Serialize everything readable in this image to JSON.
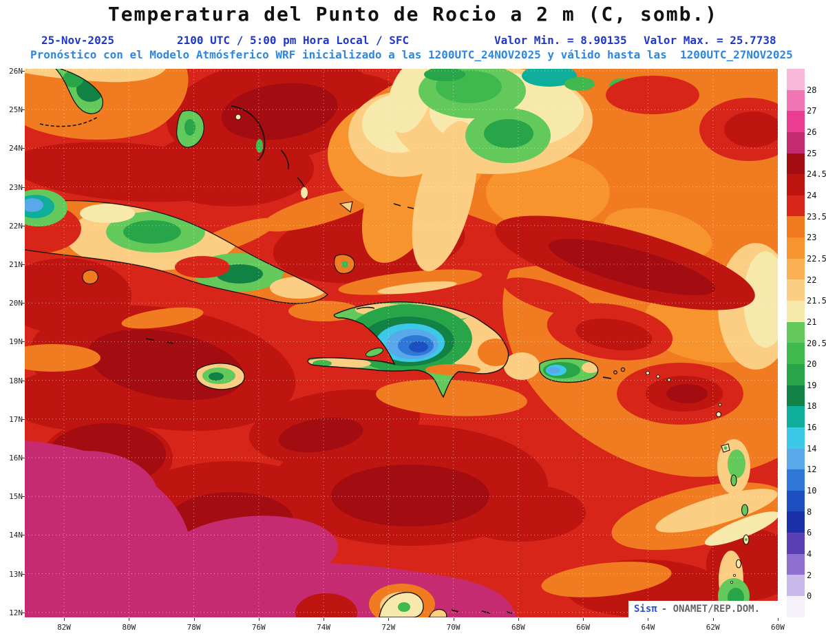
{
  "header": {
    "title": "Temperatura del Punto de Rocio a 2 m (C, somb.)",
    "date": "25-Nov-2025",
    "time": "2100 UTC / 5:00 pm Hora Local / SFC",
    "value_min": "Valor Min. = 8.90135",
    "value_max": "Valor Max. = 25.7738",
    "forecast_line": "Pronóstico con el Modelo Atmósferico WRF inicializado a las 1200UTC_24NOV2025 y válido hasta las  1200UTC_27NOV2025"
  },
  "map": {
    "lat_labels": [
      "26N",
      "25N",
      "24N",
      "23N",
      "22N",
      "21N",
      "20N",
      "19N",
      "18N",
      "17N",
      "16N",
      "15N",
      "14N",
      "13N",
      "12N"
    ],
    "lon_labels": [
      "82W",
      "80W",
      "78W",
      "76W",
      "74W",
      "72W",
      "70W",
      "68W",
      "66W",
      "64W",
      "62W",
      "60W"
    ],
    "watermark": {
      "brand": "Sisπ",
      "suffix": "- ONAMET/REP.DOM."
    }
  },
  "colorbar": {
    "labels": [
      "28",
      "27",
      "26",
      "25",
      "24.5",
      "24",
      "23.5",
      "23",
      "22.5",
      "22",
      "21.5",
      "21",
      "20.5",
      "20",
      "19",
      "18",
      "16",
      "14",
      "12",
      "10",
      "8",
      "6",
      "4",
      "2",
      "0"
    ],
    "colors": [
      "#f9b8da",
      "#f276b6",
      "#ea3c92",
      "#c62a70",
      "#a30c11",
      "#bf1510",
      "#d8251a",
      "#f07b20",
      "#f8942e",
      "#fbb054",
      "#fcce83",
      "#f7e8ab",
      "#63c95b",
      "#3fb94e",
      "#28a449",
      "#118244",
      "#0fae9a",
      "#3cc8e8",
      "#58a8ea",
      "#2e77d6",
      "#1d4fc0",
      "#1b2fa8",
      "#5b3fb5",
      "#8f6fd0",
      "#c9b8ea",
      "#f4f1fb"
    ]
  },
  "chart_data": {
    "type": "heatmap",
    "title": "Temperatura del Punto de Rocio a 2 m (C, somb.)",
    "variable": "Dew point temperature at 2 m",
    "units": "C",
    "valid_date": "25-Nov-2025",
    "valid_time": "2100 UTC / 5:00 pm Hora Local / SFC",
    "level": "SFC",
    "model": "WRF",
    "initialized": "1200UTC_24NOV2025",
    "valid_until": "1200UTC_27NOV2025",
    "value_min": 8.90135,
    "value_max": 25.7738,
    "x_ticks": [
      "82W",
      "80W",
      "78W",
      "76W",
      "74W",
      "72W",
      "70W",
      "68W",
      "66W",
      "64W",
      "62W",
      "60W"
    ],
    "y_ticks": [
      "26N",
      "25N",
      "24N",
      "23N",
      "22N",
      "21N",
      "20N",
      "19N",
      "18N",
      "17N",
      "16N",
      "15N",
      "14N",
      "13N",
      "12N"
    ],
    "contour_levels": [
      0,
      2,
      4,
      6,
      8,
      10,
      12,
      14,
      16,
      18,
      19,
      20,
      20.5,
      21,
      21.5,
      22,
      22.5,
      23,
      23.5,
      24,
      24.5,
      25,
      26,
      27,
      28
    ],
    "legend_position": "right",
    "grid": true
  }
}
